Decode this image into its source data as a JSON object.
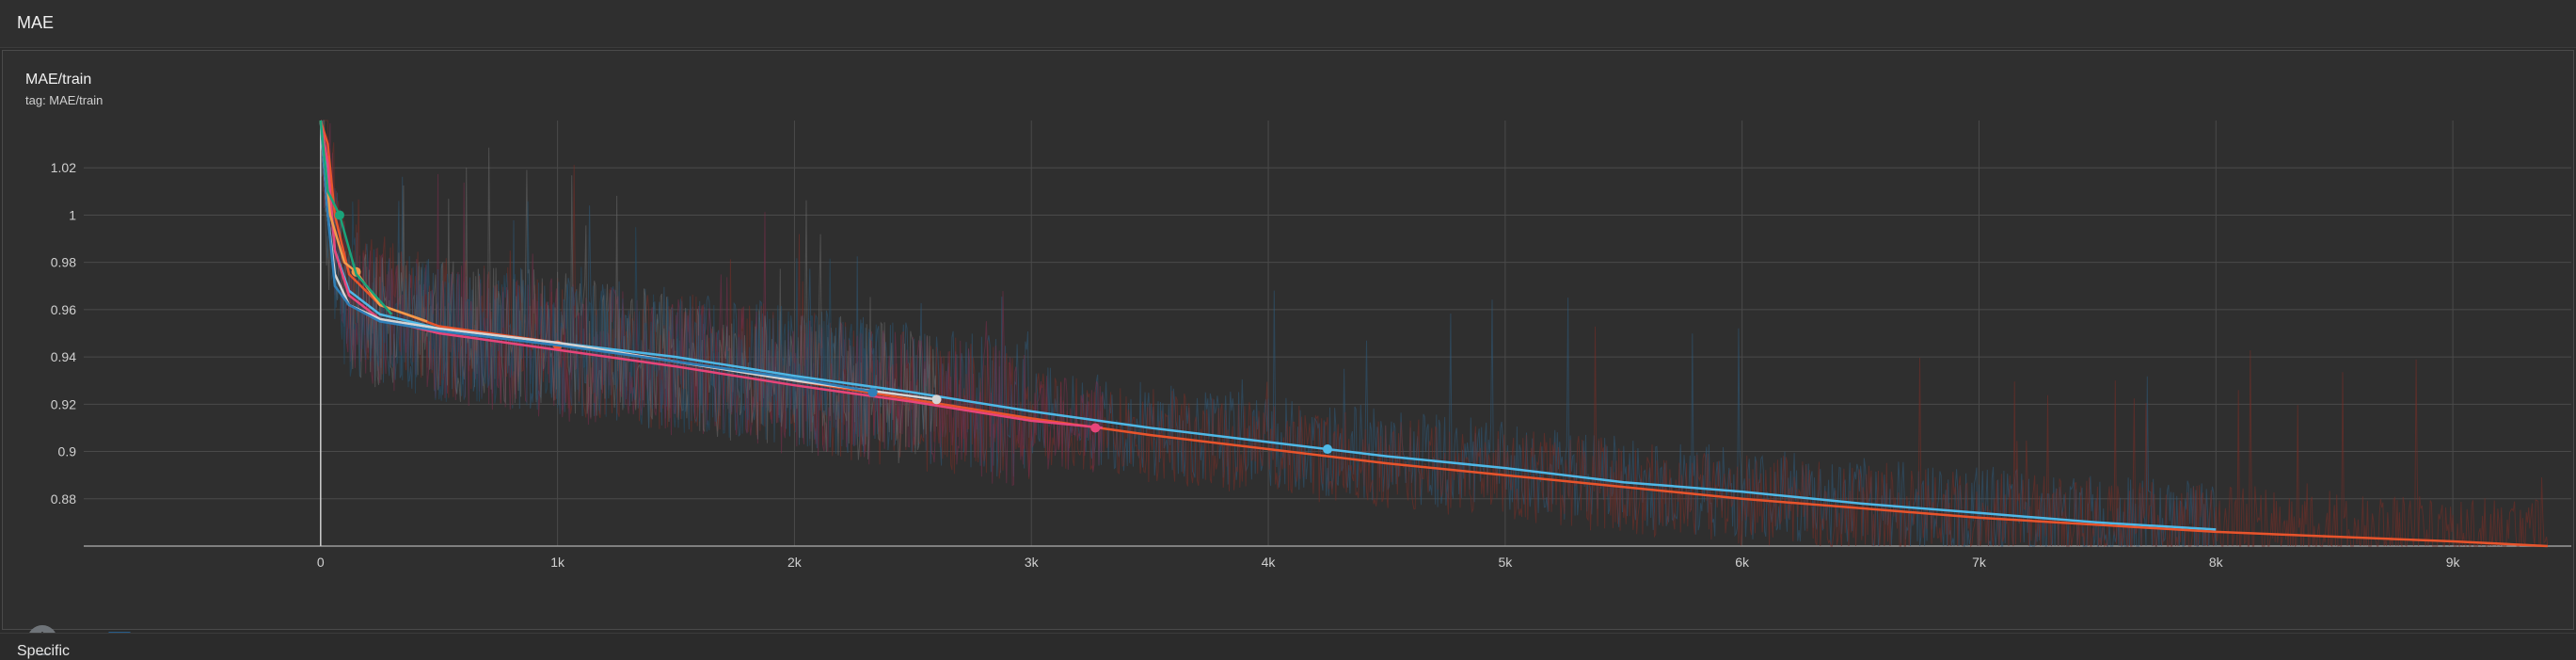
{
  "section": {
    "title": "MAE"
  },
  "card": {
    "title": "MAE/train",
    "tag": "tag: MAE/train"
  },
  "next_section": {
    "label": "Specific"
  },
  "toolbar": {
    "zoom_icon": "zoom-select-icon",
    "list_icon": "data-list-icon",
    "fit_icon": "fit-domain-icon"
  },
  "colors": {
    "grid": "#4a4a4a",
    "axis": "#9a9a9a",
    "tick": "#d0d0d0",
    "accent": "#1e88e5"
  },
  "chart_data": {
    "type": "line",
    "title": "MAE/train",
    "xlabel": "",
    "ylabel": "",
    "xlim": [
      -1000,
      9500
    ],
    "ylim": [
      0.86,
      1.04
    ],
    "x_ticks": [
      0,
      1000,
      2000,
      3000,
      4000,
      5000,
      6000,
      7000,
      8000,
      9000
    ],
    "x_tick_labels": [
      "0",
      "1k",
      "2k",
      "3k",
      "4k",
      "5k",
      "6k",
      "7k",
      "8k",
      "9k"
    ],
    "y_ticks": [
      0.88,
      0.9,
      0.92,
      0.94,
      0.96,
      0.98,
      1,
      1.02
    ],
    "y_tick_labels": [
      "0.88",
      "0.9",
      "0.92",
      "0.94",
      "0.96",
      "0.98",
      "1",
      "1.02"
    ],
    "grid": true,
    "series": [
      {
        "color": "#4fb8e6",
        "x": [
          0,
          30,
          60,
          120,
          250,
          500,
          1000,
          1500,
          2000,
          2500,
          3000,
          3500,
          4000,
          4500,
          5000,
          5500,
          6000,
          6500,
          7000,
          7500,
          8000
        ],
        "y": [
          1.04,
          1.02,
          0.985,
          0.968,
          0.958,
          0.952,
          0.946,
          0.94,
          0.932,
          0.925,
          0.917,
          0.91,
          0.904,
          0.898,
          0.893,
          0.887,
          0.883,
          0.878,
          0.874,
          0.87,
          0.867
        ],
        "marker_x": 4250,
        "marker_y": 0.901
      },
      {
        "color": "#e8542c",
        "x": [
          0,
          30,
          60,
          120,
          250,
          500,
          1000,
          1500,
          2000,
          2500,
          3000,
          3500,
          4000,
          4500,
          5000,
          5500,
          6000,
          6500,
          7000,
          7500,
          8000,
          8500,
          9000,
          9400
        ],
        "y": [
          1.04,
          1.03,
          1.0,
          0.975,
          0.962,
          0.953,
          0.946,
          0.938,
          0.93,
          0.922,
          0.914,
          0.907,
          0.901,
          0.895,
          0.89,
          0.885,
          0.88,
          0.876,
          0.872,
          0.869,
          0.866,
          0.864,
          0.862,
          0.86
        ],
        "marker_x": 1000,
        "marker_y": 0.945
      },
      {
        "color": "#e8457a",
        "x": [
          0,
          30,
          60,
          120,
          250,
          500,
          1000,
          1500,
          2000,
          2500,
          3000,
          3300
        ],
        "y": [
          1.04,
          1.022,
          0.985,
          0.966,
          0.956,
          0.95,
          0.943,
          0.936,
          0.928,
          0.921,
          0.913,
          0.91
        ],
        "marker_x": 3270,
        "marker_y": 0.91
      },
      {
        "color": "#d4d4d4",
        "x": [
          0,
          30,
          60,
          120,
          250,
          500,
          1000,
          1500,
          2000,
          2300,
          2600
        ],
        "y": [
          1.04,
          1.0,
          0.975,
          0.962,
          0.956,
          0.952,
          0.946,
          0.938,
          0.93,
          0.926,
          0.922
        ],
        "marker_x": 2600,
        "marker_y": 0.922
      },
      {
        "color": "#2f7fb8",
        "x": [
          0,
          30,
          60,
          120,
          250,
          500,
          1000,
          1500,
          2000,
          2350
        ],
        "y": [
          1.04,
          1.0,
          0.97,
          0.962,
          0.955,
          0.951,
          0.945,
          0.938,
          0.931,
          0.925
        ],
        "marker_x": 2330,
        "marker_y": 0.925
      },
      {
        "color": "#f2994a",
        "x": [
          0,
          40,
          100,
          150,
          250,
          450
        ],
        "y": [
          1.04,
          1.0,
          0.98,
          0.976,
          0.962,
          0.955
        ],
        "marker_x": 150,
        "marker_y": 0.976
      },
      {
        "color": "#1aa37a",
        "x": [
          0,
          30,
          80,
          150,
          300
        ],
        "y": [
          1.04,
          1.01,
          1.0,
          0.975,
          0.958
        ],
        "marker_x": 80,
        "marker_y": 1.0
      }
    ]
  }
}
